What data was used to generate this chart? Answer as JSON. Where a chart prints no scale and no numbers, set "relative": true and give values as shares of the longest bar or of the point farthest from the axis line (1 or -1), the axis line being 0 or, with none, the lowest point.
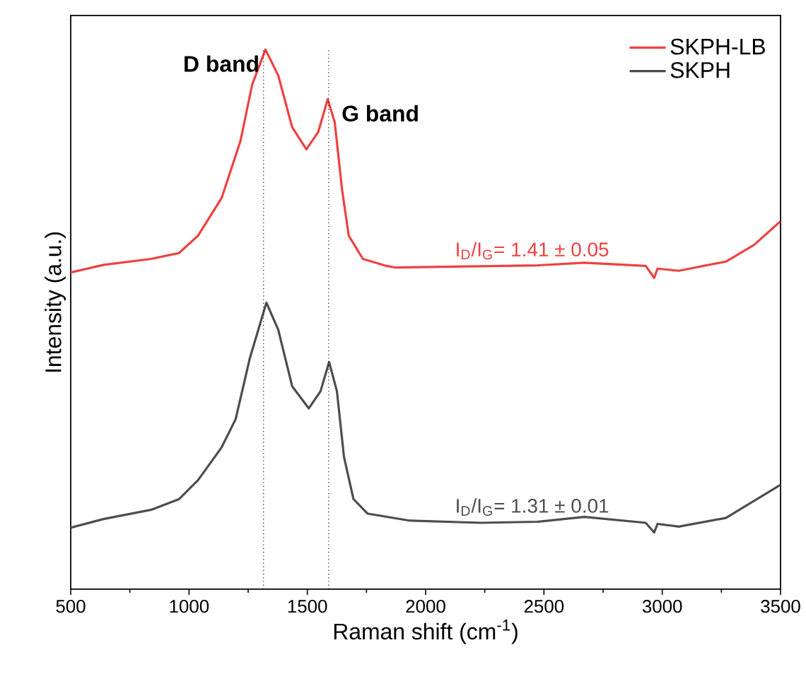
{
  "chart_data": {
    "type": "line",
    "relative": true,
    "xlabel": "Raman shift (cm$^{-1}$)",
    "ylabel": "Intensity (a.u.)",
    "xlim": [
      500,
      3500
    ],
    "xticks": [
      500,
      1000,
      1500,
      2000,
      2500,
      3000,
      3500
    ],
    "legend": "top right",
    "grid": false,
    "marker": "none",
    "line_style": "solid",
    "series": [
      {
        "name": "SKPH-LB",
        "color": "#f04040",
        "x": [
          500,
          639,
          839,
          958,
          1038,
          1138,
          1217,
          1267,
          1323,
          1377,
          1436,
          1496,
          1546,
          1586,
          1616,
          1646,
          1675,
          1735,
          1835,
          1874,
          2472,
          2671,
          2930,
          2966,
          2980,
          3070,
          3269,
          3388,
          3498
        ],
        "values": [
          0.587,
          0.601,
          0.612,
          0.623,
          0.655,
          0.725,
          0.83,
          0.935,
          1.0,
          0.952,
          0.856,
          0.815,
          0.847,
          0.908,
          0.865,
          0.743,
          0.655,
          0.612,
          0.599,
          0.596,
          0.6,
          0.605,
          0.599,
          0.577,
          0.594,
          0.59,
          0.607,
          0.638,
          0.681
        ]
      },
      {
        "name": "SKPH",
        "color": "#4d4d4d",
        "x": [
          500,
          639,
          839,
          958,
          1038,
          1138,
          1197,
          1257,
          1327,
          1377,
          1436,
          1506,
          1556,
          1592,
          1625,
          1655,
          1695,
          1755,
          1934,
          2233,
          2472,
          2671,
          2930,
          2966,
          2980,
          3070,
          3269,
          3498
        ],
        "values": [
          0.114,
          0.13,
          0.147,
          0.167,
          0.202,
          0.263,
          0.315,
          0.428,
          0.531,
          0.481,
          0.376,
          0.335,
          0.367,
          0.421,
          0.367,
          0.245,
          0.167,
          0.14,
          0.127,
          0.123,
          0.125,
          0.134,
          0.123,
          0.105,
          0.121,
          0.116,
          0.132,
          0.193
        ]
      }
    ],
    "ref_lines": [
      {
        "axis": "x",
        "value": 1315,
        "line_style": "dotted",
        "color": "#000000"
      },
      {
        "axis": "x",
        "value": 1590,
        "line_style": "dotted",
        "color": "#000000"
      }
    ],
    "annotations": [
      {
        "text": "**D band**",
        "x": 1323,
        "y": 1.0
      },
      {
        "text": "**G band**",
        "x": 1590,
        "y": 0.908
      },
      {
        "text": "I$_{D}$/I$_{G}$= 1.41 ± 0.05",
        "x": 2450,
        "y": 0.6
      },
      {
        "text": "I$_{D}$/I$_{G}$= 1.31 ± 0.01",
        "x": 2450,
        "y": 0.125
      }
    ]
  }
}
